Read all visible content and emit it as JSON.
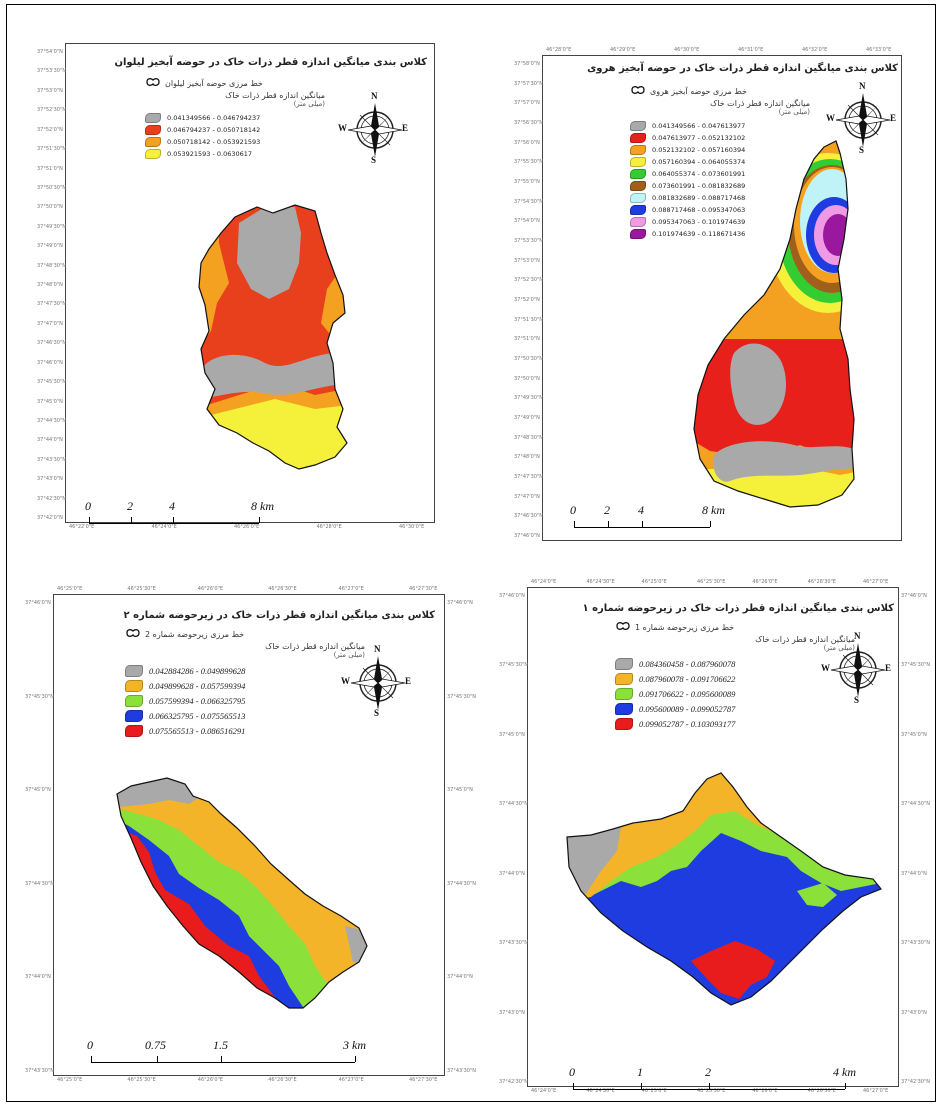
{
  "boundary_icon": "boundary-outline-icon",
  "compass": {
    "n": "N",
    "s": "S",
    "e": "E",
    "w": "W",
    "icon": "compass-rose-icon"
  },
  "panels": {
    "top_left": {
      "title": "کلاس بندی میانگین اندازه قطر ذرات خاک در حوضه آبخیز لیلوان",
      "boundary_label": "خط مرزی حوضه آبخیز لیلوان",
      "legend_head": "میانگین اندازه قطر ذرات خاک",
      "legend_unit": "(میلی متر)",
      "classes": [
        {
          "color": "#a9a9a9",
          "label": "0.041349566 - 0.046794237"
        },
        {
          "color": "#e8401c",
          "label": "0.046794237 - 0.050718142"
        },
        {
          "color": "#f4a020",
          "label": "0.050718142 - 0.053921593"
        },
        {
          "color": "#f5f03a",
          "label": "0.053921593 - 0.0630617"
        }
      ],
      "scale": [
        "0",
        "2",
        "4",
        "8 km"
      ],
      "ticks_left": [
        "37°54'0\"N",
        "37°53'30\"N",
        "37°53'0\"N",
        "37°52'30\"N",
        "37°52'0\"N",
        "37°51'30\"N",
        "37°51'0\"N",
        "37°50'30\"N",
        "37°50'0\"N",
        "37°49'30\"N",
        "37°49'0\"N",
        "37°48'30\"N",
        "37°48'0\"N",
        "37°47'30\"N",
        "37°47'0\"N",
        "37°46'30\"N",
        "37°46'0\"N",
        "37°45'30\"N",
        "37°45'0\"N",
        "37°44'30\"N",
        "37°44'0\"N",
        "37°43'30\"N",
        "37°43'0\"N",
        "37°42'30\"N",
        "37°42'0\"N"
      ],
      "ticks_bottom": [
        "46°22'0\"E",
        "46°24'0\"E",
        "46°26'0\"E",
        "46°28'0\"E",
        "46°30'0\"E"
      ]
    },
    "top_right": {
      "title": "کلاس بندی میانگین اندازه قطر ذرات خاک در حوضه آبخیز هروی",
      "boundary_label": "خط مرزی حوضه آبخیز هروی",
      "legend_head": "میانگین اندازه قطر ذرات خاک",
      "legend_unit": "(میلی متر)",
      "classes": [
        {
          "color": "#a9a9a9",
          "label": "0.041349566 - 0.047613977"
        },
        {
          "color": "#e8201c",
          "label": "0.047613977 - 0.052132102"
        },
        {
          "color": "#f4a020",
          "label": "0.052132102 - 0.057160394"
        },
        {
          "color": "#f5f03a",
          "label": "0.057160394 - 0.064055374"
        },
        {
          "color": "#33cc33",
          "label": "0.064055374 - 0.073601991"
        },
        {
          "color": "#a0601c",
          "label": "0.073601991 - 0.081832689"
        },
        {
          "color": "#bff3f7",
          "label": "0.081832689 - 0.088717468"
        },
        {
          "color": "#1e3ce0",
          "label": "0.088717468 - 0.095347063"
        },
        {
          "color": "#f09ae6",
          "label": "0.095347063 - 0.101974639"
        },
        {
          "color": "#9a189e",
          "label": "0.101974639 - 0.118671436"
        }
      ],
      "scale": [
        "0",
        "2",
        "4",
        "8 km"
      ],
      "ticks_top": [
        "46°28'0\"E",
        "46°29'0\"E",
        "46°30'0\"E",
        "46°31'0\"E",
        "46°32'0\"E",
        "46°33'0\"E"
      ],
      "ticks_left": [
        "37°58'0\"N",
        "37°57'30\"N",
        "37°57'0\"N",
        "37°56'30\"N",
        "37°56'0\"N",
        "37°55'30\"N",
        "37°55'0\"N",
        "37°54'30\"N",
        "37°54'0\"N",
        "37°53'30\"N",
        "37°53'0\"N",
        "37°52'30\"N",
        "37°52'0\"N",
        "37°51'30\"N",
        "37°51'0\"N",
        "37°50'30\"N",
        "37°50'0\"N",
        "37°49'30\"N",
        "37°49'0\"N",
        "37°48'30\"N",
        "37°48'0\"N",
        "37°47'30\"N",
        "37°47'0\"N",
        "37°46'30\"N",
        "37°46'0\"N"
      ]
    },
    "bottom_left": {
      "title": "کلاس بندی میانگین اندازه قطر ذرات خاک در زیرحوضه شماره ۲",
      "boundary_label": "خط مرزی زیرحوضه شماره 2",
      "legend_head": "میانگین اندازه قطر ذرات خاک",
      "legend_unit": "(میلی متر)",
      "classes": [
        {
          "color": "#a9a9a9",
          "label": "0.042884286 - 0.049899628"
        },
        {
          "color": "#f4b42a",
          "label": "0.049899628 - 0.057599394"
        },
        {
          "color": "#8be03a",
          "label": "0.057599394 - 0.066325795"
        },
        {
          "color": "#1e3ce0",
          "label": "0.066325795 - 0.075565513"
        },
        {
          "color": "#e81c1c",
          "label": "0.075565513 - 0.086516291"
        }
      ],
      "scale": [
        "0",
        "0.75",
        "1.5",
        "3 km"
      ],
      "ticks_top": [
        "46°25'0\"E",
        "46°25'30\"E",
        "46°26'0\"E",
        "46°26'30\"E",
        "46°27'0\"E",
        "46°27'30\"E"
      ],
      "ticks_bottom": [
        "46°25'0\"E",
        "46°25'30\"E",
        "46°26'0\"E",
        "46°26'30\"E",
        "46°27'0\"E",
        "46°27'30\"E"
      ],
      "ticks_left": [
        "37°46'0\"N",
        "37°45'30\"N",
        "37°45'0\"N",
        "37°44'30\"N",
        "37°44'0\"N",
        "37°43'30\"N"
      ],
      "ticks_right": [
        "37°46'0\"N",
        "37°45'30\"N",
        "37°45'0\"N",
        "37°44'30\"N",
        "37°44'0\"N",
        "37°43'30\"N"
      ]
    },
    "bottom_right": {
      "title": "کلاس بندی میانگین اندازه قطر ذرات خاک در زیرحوضه شماره ۱",
      "boundary_label": "خط مرزی زیرحوضه شماره 1",
      "legend_head": "میانگین اندازه قطر ذرات خاک",
      "legend_unit": "(میلی متر)",
      "classes": [
        {
          "color": "#a9a9a9",
          "label": "0.084360458 - 0.087960078"
        },
        {
          "color": "#f4b42a",
          "label": "0.087960078 - 0.091706622"
        },
        {
          "color": "#8be03a",
          "label": "0.091706622 - 0.095600089"
        },
        {
          "color": "#1e3ce0",
          "label": "0.095600089 - 0.099052787"
        },
        {
          "color": "#e81c1c",
          "label": "0.099052787 - 0.103093177"
        }
      ],
      "scale": [
        "0",
        "1",
        "2",
        "4 km"
      ],
      "ticks_top": [
        "46°24'0\"E",
        "46°24'30\"E",
        "46°25'0\"E",
        "46°25'30\"E",
        "46°26'0\"E",
        "46°26'30\"E",
        "46°27'0\"E"
      ],
      "ticks_bottom": [
        "46°24'0\"E",
        "46°24'30\"E",
        "46°25'0\"E",
        "46°25'30\"E",
        "46°26'0\"E",
        "46°26'30\"E",
        "46°27'0\"E"
      ],
      "ticks_left": [
        "37°46'0\"N",
        "37°45'30\"N",
        "37°45'0\"N",
        "37°44'30\"N",
        "37°44'0\"N",
        "37°43'30\"N",
        "37°43'0\"N",
        "37°42'30\"N"
      ],
      "ticks_right": [
        "37°46'0\"N",
        "37°45'30\"N",
        "37°45'0\"N",
        "37°44'30\"N",
        "37°44'0\"N",
        "37°43'30\"N",
        "37°43'0\"N",
        "37°42'30\"N"
      ]
    }
  }
}
